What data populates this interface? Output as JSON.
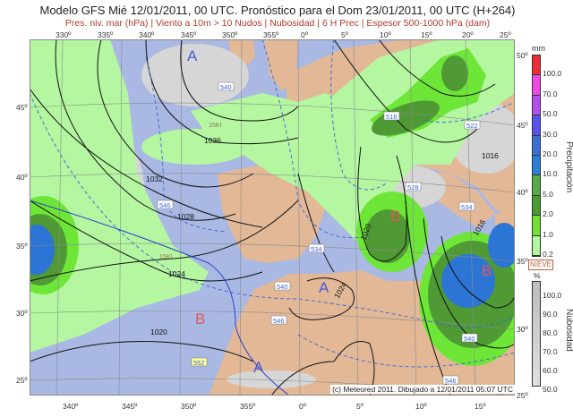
{
  "header": {
    "title": "Modelo GFS Mié 12/01/2011, 00 UTC. Pronóstico para el Dom 23/01/2011, 00 UTC (H+264)",
    "subtitle": "Pres. niv. mar (hPa) | Viento a 10m > 10 Nudos | Nubosidad | 6 H Prec | Espesor 500-1000 hPa (dam)"
  },
  "axes": {
    "top_lon": [
      "330º",
      "335º",
      "340º",
      "345º",
      "350º",
      "355º",
      "0º",
      "5º",
      "10º",
      "15º",
      "20º",
      "25º"
    ],
    "bottom_lon": [
      "340º",
      "345º",
      "350º",
      "355º",
      "0º",
      "5º",
      "10º",
      "15º"
    ],
    "left_lat": [
      "45º",
      "40º",
      "35º",
      "30º",
      "25º"
    ],
    "right_lat": [
      "50º",
      "45º",
      "40º",
      "35º",
      "30º",
      "25º"
    ]
  },
  "map": {
    "colors": {
      "ocean": "#a9b9e3",
      "land": "#e2b896",
      "cloud": "#d6d6d6",
      "prec_light": "#b4f7a0",
      "prec_green": "#6ee637",
      "prec_dark": "#4f9a34",
      "prec_blue": "#2d75d4",
      "isobar": "#111111",
      "thickness": "#3a63d8",
      "wind": "#8b6a5a"
    },
    "pressure_centers": [
      {
        "label": "A",
        "type": "high"
      },
      {
        "label": "A",
        "type": "high"
      },
      {
        "label": "A",
        "type": "high"
      },
      {
        "label": "B",
        "type": "low"
      },
      {
        "label": "B",
        "type": "low"
      },
      {
        "label": "B",
        "type": "low"
      }
    ],
    "isobar_labels": [
      "1036",
      "1032",
      "1028",
      "1024",
      "1020",
      "1024",
      "1020",
      "1016",
      "1016"
    ],
    "thickness_labels": [
      "540",
      "546",
      "516",
      "522",
      "528",
      "534",
      "534",
      "540",
      "546",
      "552",
      "540",
      "546"
    ],
    "snow_level_labels": [
      "15KI",
      "15KI"
    ]
  },
  "legend": {
    "precip_unit": "mm",
    "precip_title": "Precipitación",
    "precip_levels": [
      "100.0",
      "70.0",
      "50.0",
      "30.0",
      "20.0",
      "10.0",
      "5.0",
      "2.0",
      "1.0",
      "0.2"
    ],
    "precip_colors": [
      "#ee2a36",
      "#f246e6",
      "#b44ef0",
      "#5a52f0",
      "#3a6fd8",
      "#2a80d8",
      "#5aaa4a",
      "#4a9a30",
      "#74e030",
      "#b2f8a2"
    ],
    "snow_label": "NIEVE",
    "cloud_unit": "%",
    "cloud_title": "Nubosidad",
    "cloud_levels": [
      "100.0",
      "90.0",
      "80.0",
      "70.0",
      "60.0",
      "50.0"
    ]
  },
  "footer": {
    "credit": "(c) Meteored 2011. Dibujado a 12/01/2011 05:07 UTC"
  }
}
